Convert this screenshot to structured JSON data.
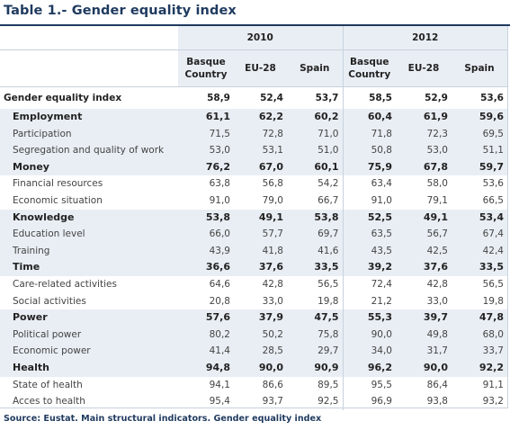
{
  "title": "Table 1.- Gender equality index",
  "years": [
    "2010",
    "2012"
  ],
  "columns": [
    "Basque Country",
    "EU-28",
    "Spain",
    "Basque Country",
    "EU-28",
    "Spain"
  ],
  "columns_split": [
    {
      "line1": "Basque",
      "line2": "Country"
    },
    {
      "line1": "EU-28",
      "line2": ""
    },
    {
      "line1": "Spain",
      "line2": ""
    },
    {
      "line1": "Basque",
      "line2": "Country"
    },
    {
      "line1": "EU-28",
      "line2": ""
    },
    {
      "line1": "Spain",
      "line2": ""
    }
  ],
  "rows": [
    {
      "label": "Gender equality index",
      "type": "total",
      "values": [
        "58,9",
        "52,4",
        "53,7",
        "58,5",
        "52,9",
        "53,6"
      ]
    },
    {
      "label": "Employment",
      "type": "dom",
      "values": [
        "61,1",
        "62,2",
        "60,2",
        "60,4",
        "61,9",
        "59,6"
      ]
    },
    {
      "label": "Participation",
      "type": "sub",
      "values": [
        "71,5",
        "72,8",
        "71,0",
        "71,8",
        "72,3",
        "69,5"
      ]
    },
    {
      "label": "Segregation and quality of work",
      "type": "sub",
      "values": [
        "53,0",
        "53,1",
        "51,0",
        "50,8",
        "53,0",
        "51,1"
      ]
    },
    {
      "label": "Money",
      "type": "dom",
      "values": [
        "76,2",
        "67,0",
        "60,1",
        "75,9",
        "67,8",
        "59,7"
      ]
    },
    {
      "label": "Financial resources",
      "type": "sub",
      "values": [
        "63,8",
        "56,8",
        "54,2",
        "63,4",
        "58,0",
        "53,6"
      ]
    },
    {
      "label": "Economic situation",
      "type": "sub",
      "values": [
        "91,0",
        "79,0",
        "66,7",
        "91,0",
        "79,1",
        "66,5"
      ]
    },
    {
      "label": "Knowledge",
      "type": "dom",
      "values": [
        "53,8",
        "49,1",
        "53,8",
        "52,5",
        "49,1",
        "53,4"
      ]
    },
    {
      "label": "Education level",
      "type": "sub",
      "values": [
        "66,0",
        "57,7",
        "69,7",
        "63,5",
        "56,7",
        "67,4"
      ]
    },
    {
      "label": "Training",
      "type": "sub",
      "values": [
        "43,9",
        "41,8",
        "41,6",
        "43,5",
        "42,5",
        "42,4"
      ]
    },
    {
      "label": "Time",
      "type": "dom",
      "values": [
        "36,6",
        "37,6",
        "33,5",
        "39,2",
        "37,6",
        "33,5"
      ]
    },
    {
      "label": "Care-related activities",
      "type": "sub",
      "values": [
        "64,6",
        "42,8",
        "56,5",
        "72,4",
        "42,8",
        "56,5"
      ]
    },
    {
      "label": "Social activities",
      "type": "sub",
      "values": [
        "20,8",
        "33,0",
        "19,8",
        "21,2",
        "33,0",
        "19,8"
      ]
    },
    {
      "label": "Power",
      "type": "dom",
      "values": [
        "57,6",
        "37,9",
        "47,5",
        "55,3",
        "39,7",
        "47,8"
      ]
    },
    {
      "label": "Political power",
      "type": "sub",
      "values": [
        "80,2",
        "50,2",
        "75,8",
        "90,0",
        "49,8",
        "68,0"
      ]
    },
    {
      "label": "Economic power",
      "type": "sub",
      "values": [
        "41,4",
        "28,5",
        "29,7",
        "34,0",
        "31,7",
        "33,7"
      ]
    },
    {
      "label": "Health",
      "type": "dom",
      "values": [
        "94,8",
        "90,0",
        "90,9",
        "96,2",
        "90,0",
        "92,2"
      ]
    },
    {
      "label": "State of health",
      "type": "sub",
      "values": [
        "94,1",
        "86,6",
        "89,5",
        "95,5",
        "86,4",
        "91,1"
      ]
    },
    {
      "label": "Acces to health",
      "type": "sub",
      "values": [
        "95,4",
        "93,7",
        "92,5",
        "96,9",
        "93,8",
        "93,2"
      ]
    }
  ],
  "source": "Source: Eustat. Main structural indicators. Gender equality index",
  "colors": {
    "title": "#1f3a5f",
    "band": "#e9eef4",
    "rule": "#c8d2de"
  }
}
